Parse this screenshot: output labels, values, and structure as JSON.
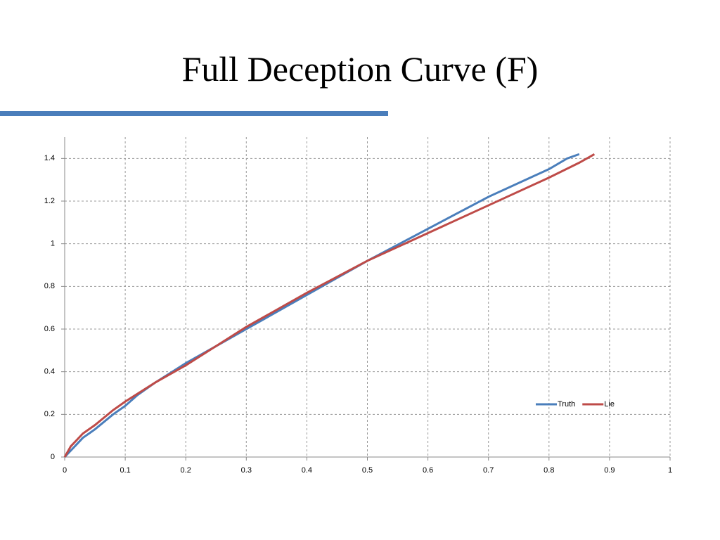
{
  "chart_data": {
    "type": "line",
    "title": "Full Deception Curve (F)",
    "xlim": [
      0,
      1
    ],
    "xticks": [
      0,
      0.1,
      0.2,
      0.3,
      0.4,
      0.5,
      0.6,
      0.7,
      0.8,
      0.9,
      1
    ],
    "ylim": [
      0,
      1.5
    ],
    "yticks": [
      0,
      0.2,
      0.4,
      0.6,
      0.8,
      1,
      1.2,
      1.4
    ],
    "grid": true,
    "legend": "right",
    "series": [
      {
        "name": "Truth",
        "color": "#4a7ebb",
        "x": [
          0,
          0.01,
          0.02,
          0.03,
          0.05,
          0.08,
          0.1,
          0.12,
          0.15,
          0.2,
          0.25,
          0.3,
          0.4,
          0.5,
          0.6,
          0.7,
          0.8,
          0.83,
          0.85
        ],
        "values": [
          0,
          0.03,
          0.06,
          0.09,
          0.13,
          0.2,
          0.24,
          0.29,
          0.35,
          0.44,
          0.52,
          0.6,
          0.76,
          0.92,
          1.07,
          1.22,
          1.35,
          1.4,
          1.42
        ]
      },
      {
        "name": "Lie",
        "color": "#be4b48",
        "x": [
          0,
          0.01,
          0.02,
          0.03,
          0.05,
          0.08,
          0.1,
          0.15,
          0.2,
          0.25,
          0.3,
          0.4,
          0.5,
          0.6,
          0.7,
          0.8,
          0.85,
          0.875
        ],
        "values": [
          0,
          0.05,
          0.08,
          0.11,
          0.15,
          0.22,
          0.26,
          0.35,
          0.43,
          0.52,
          0.61,
          0.77,
          0.92,
          1.05,
          1.18,
          1.31,
          1.38,
          1.42
        ]
      }
    ]
  }
}
